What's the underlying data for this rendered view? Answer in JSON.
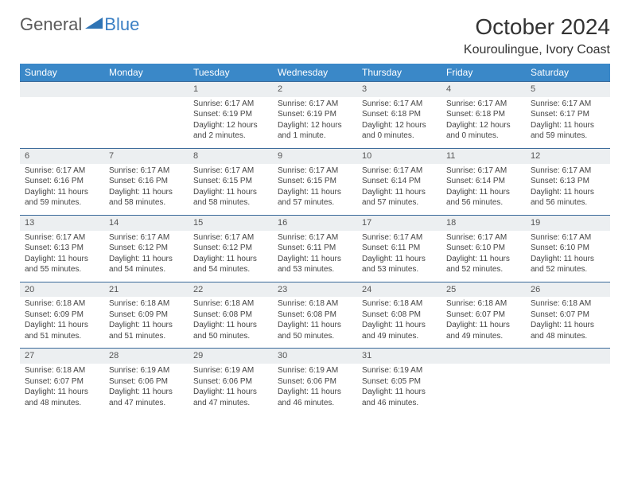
{
  "logo": {
    "general": "General",
    "blue": "Blue"
  },
  "title": "October 2024",
  "location": "Kouroulingue, Ivory Coast",
  "header_bg": "#3a88c8",
  "daynum_bg": "#eceff1",
  "row_border": "#3a6a9a",
  "days_of_week": [
    "Sunday",
    "Monday",
    "Tuesday",
    "Wednesday",
    "Thursday",
    "Friday",
    "Saturday"
  ],
  "weeks": [
    [
      {
        "empty": true
      },
      {
        "empty": true
      },
      {
        "num": "1",
        "sunrise": "Sunrise: 6:17 AM",
        "sunset": "Sunset: 6:19 PM",
        "daylight": "Daylight: 12 hours and 2 minutes."
      },
      {
        "num": "2",
        "sunrise": "Sunrise: 6:17 AM",
        "sunset": "Sunset: 6:19 PM",
        "daylight": "Daylight: 12 hours and 1 minute."
      },
      {
        "num": "3",
        "sunrise": "Sunrise: 6:17 AM",
        "sunset": "Sunset: 6:18 PM",
        "daylight": "Daylight: 12 hours and 0 minutes."
      },
      {
        "num": "4",
        "sunrise": "Sunrise: 6:17 AM",
        "sunset": "Sunset: 6:18 PM",
        "daylight": "Daylight: 12 hours and 0 minutes."
      },
      {
        "num": "5",
        "sunrise": "Sunrise: 6:17 AM",
        "sunset": "Sunset: 6:17 PM",
        "daylight": "Daylight: 11 hours and 59 minutes."
      }
    ],
    [
      {
        "num": "6",
        "sunrise": "Sunrise: 6:17 AM",
        "sunset": "Sunset: 6:16 PM",
        "daylight": "Daylight: 11 hours and 59 minutes."
      },
      {
        "num": "7",
        "sunrise": "Sunrise: 6:17 AM",
        "sunset": "Sunset: 6:16 PM",
        "daylight": "Daylight: 11 hours and 58 minutes."
      },
      {
        "num": "8",
        "sunrise": "Sunrise: 6:17 AM",
        "sunset": "Sunset: 6:15 PM",
        "daylight": "Daylight: 11 hours and 58 minutes."
      },
      {
        "num": "9",
        "sunrise": "Sunrise: 6:17 AM",
        "sunset": "Sunset: 6:15 PM",
        "daylight": "Daylight: 11 hours and 57 minutes."
      },
      {
        "num": "10",
        "sunrise": "Sunrise: 6:17 AM",
        "sunset": "Sunset: 6:14 PM",
        "daylight": "Daylight: 11 hours and 57 minutes."
      },
      {
        "num": "11",
        "sunrise": "Sunrise: 6:17 AM",
        "sunset": "Sunset: 6:14 PM",
        "daylight": "Daylight: 11 hours and 56 minutes."
      },
      {
        "num": "12",
        "sunrise": "Sunrise: 6:17 AM",
        "sunset": "Sunset: 6:13 PM",
        "daylight": "Daylight: 11 hours and 56 minutes."
      }
    ],
    [
      {
        "num": "13",
        "sunrise": "Sunrise: 6:17 AM",
        "sunset": "Sunset: 6:13 PM",
        "daylight": "Daylight: 11 hours and 55 minutes."
      },
      {
        "num": "14",
        "sunrise": "Sunrise: 6:17 AM",
        "sunset": "Sunset: 6:12 PM",
        "daylight": "Daylight: 11 hours and 54 minutes."
      },
      {
        "num": "15",
        "sunrise": "Sunrise: 6:17 AM",
        "sunset": "Sunset: 6:12 PM",
        "daylight": "Daylight: 11 hours and 54 minutes."
      },
      {
        "num": "16",
        "sunrise": "Sunrise: 6:17 AM",
        "sunset": "Sunset: 6:11 PM",
        "daylight": "Daylight: 11 hours and 53 minutes."
      },
      {
        "num": "17",
        "sunrise": "Sunrise: 6:17 AM",
        "sunset": "Sunset: 6:11 PM",
        "daylight": "Daylight: 11 hours and 53 minutes."
      },
      {
        "num": "18",
        "sunrise": "Sunrise: 6:17 AM",
        "sunset": "Sunset: 6:10 PM",
        "daylight": "Daylight: 11 hours and 52 minutes."
      },
      {
        "num": "19",
        "sunrise": "Sunrise: 6:17 AM",
        "sunset": "Sunset: 6:10 PM",
        "daylight": "Daylight: 11 hours and 52 minutes."
      }
    ],
    [
      {
        "num": "20",
        "sunrise": "Sunrise: 6:18 AM",
        "sunset": "Sunset: 6:09 PM",
        "daylight": "Daylight: 11 hours and 51 minutes."
      },
      {
        "num": "21",
        "sunrise": "Sunrise: 6:18 AM",
        "sunset": "Sunset: 6:09 PM",
        "daylight": "Daylight: 11 hours and 51 minutes."
      },
      {
        "num": "22",
        "sunrise": "Sunrise: 6:18 AM",
        "sunset": "Sunset: 6:08 PM",
        "daylight": "Daylight: 11 hours and 50 minutes."
      },
      {
        "num": "23",
        "sunrise": "Sunrise: 6:18 AM",
        "sunset": "Sunset: 6:08 PM",
        "daylight": "Daylight: 11 hours and 50 minutes."
      },
      {
        "num": "24",
        "sunrise": "Sunrise: 6:18 AM",
        "sunset": "Sunset: 6:08 PM",
        "daylight": "Daylight: 11 hours and 49 minutes."
      },
      {
        "num": "25",
        "sunrise": "Sunrise: 6:18 AM",
        "sunset": "Sunset: 6:07 PM",
        "daylight": "Daylight: 11 hours and 49 minutes."
      },
      {
        "num": "26",
        "sunrise": "Sunrise: 6:18 AM",
        "sunset": "Sunset: 6:07 PM",
        "daylight": "Daylight: 11 hours and 48 minutes."
      }
    ],
    [
      {
        "num": "27",
        "sunrise": "Sunrise: 6:18 AM",
        "sunset": "Sunset: 6:07 PM",
        "daylight": "Daylight: 11 hours and 48 minutes."
      },
      {
        "num": "28",
        "sunrise": "Sunrise: 6:19 AM",
        "sunset": "Sunset: 6:06 PM",
        "daylight": "Daylight: 11 hours and 47 minutes."
      },
      {
        "num": "29",
        "sunrise": "Sunrise: 6:19 AM",
        "sunset": "Sunset: 6:06 PM",
        "daylight": "Daylight: 11 hours and 47 minutes."
      },
      {
        "num": "30",
        "sunrise": "Sunrise: 6:19 AM",
        "sunset": "Sunset: 6:06 PM",
        "daylight": "Daylight: 11 hours and 46 minutes."
      },
      {
        "num": "31",
        "sunrise": "Sunrise: 6:19 AM",
        "sunset": "Sunset: 6:05 PM",
        "daylight": "Daylight: 11 hours and 46 minutes."
      },
      {
        "empty": true
      },
      {
        "empty": true
      }
    ]
  ]
}
